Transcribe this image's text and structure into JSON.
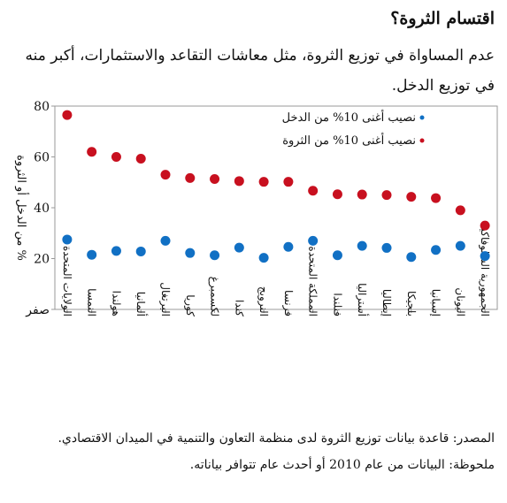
{
  "chart_data": {
    "type": "scatter",
    "title": "اقتسام الثروة؟",
    "subtitle": "عدم المساواة في توزيع الثروة، مثل معاشات التقاعد والاستثمارات، أكبر منه في توزيع الدخل.",
    "ylabel": "% من الدخل أو الثروة",
    "ylim": [
      0,
      80
    ],
    "yticks": [
      {
        "value": 0,
        "label": "صفر"
      },
      {
        "value": 20,
        "label": "20"
      },
      {
        "value": 40,
        "label": "40"
      },
      {
        "value": 60,
        "label": "60"
      },
      {
        "value": 80,
        "label": "80"
      }
    ],
    "categories": [
      "الولايات المتحدة",
      "النمسا",
      "هولندا",
      "ألمانيا",
      "البرتغال",
      "كوريا",
      "لكسمبرغ",
      "كندا",
      "النرويج",
      "فرنسا",
      "المملكة المتحدة",
      "فنلندا",
      "أستراليا",
      "إيطاليا",
      "بلجيكا",
      "إسبانيا",
      "اليونان",
      "الجمهورية السلوفاكية"
    ],
    "series": [
      {
        "name": "نصيب أغنى 10% من الدخل",
        "color": "#1170c4",
        "values": [
          27.5,
          21.5,
          23,
          22.8,
          27,
          22.2,
          21.3,
          24.3,
          20.3,
          24.6,
          27,
          21.3,
          25,
          24.2,
          20.6,
          23.4,
          25,
          21
        ]
      },
      {
        "name": "نصيب أغنى 10% من الثروة",
        "color": "#c8101f",
        "values": [
          76.5,
          62,
          60,
          59.3,
          53,
          51.7,
          51.3,
          50.5,
          50.2,
          50.2,
          46.7,
          45.3,
          45.2,
          45,
          44.3,
          43.8,
          39,
          33
        ]
      }
    ],
    "legend_position": "top-right",
    "grid": false
  },
  "footer": {
    "source": "المصدر: قاعدة بيانات توزيع الثروة لدى منظمة التعاون والتنمية في الميدان الاقتصادي.",
    "note": "ملحوظة: البيانات من عام 2010 أو أحدث عام تتوافر بياناته."
  }
}
